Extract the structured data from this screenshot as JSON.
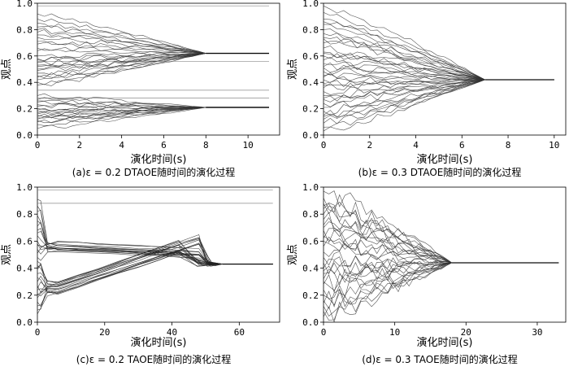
{
  "chart_data": [
    {
      "type": "line",
      "panel": "a",
      "caption": "(a)ε = 0.2  DTAOE随时间的演化过程",
      "xlabel": "演化时间(s)",
      "ylabel": "观点",
      "xlim": [
        0,
        11.5
      ],
      "ylim": [
        0,
        1.0
      ],
      "xticks": [
        0,
        2,
        4,
        6,
        8,
        10
      ],
      "yticks": [
        0.0,
        0.2,
        0.4,
        0.6,
        0.8,
        1.0
      ],
      "consensus_clusters": [
        0.62,
        0.21
      ],
      "isolated_opinions": [
        0.98,
        0.56,
        0.34,
        0.28
      ],
      "t_converge": 8,
      "t_end": 11,
      "series": [
        {
          "values": [
            0.92,
            0.85,
            0.8,
            0.76,
            0.71,
            0.66,
            0.58,
            0.55,
            0.52,
            0.5,
            0.47,
            0.45,
            0.42,
            0.38,
            0.74,
            0.69,
            0.64,
            0.6,
            0.57,
            0.53,
            0.49,
            0.44,
            0.4,
            0.88,
            0.82,
            0.78
          ]
        },
        {
          "values": [
            0.3,
            0.27,
            0.25,
            0.22,
            0.2,
            0.18,
            0.16,
            0.15,
            0.13,
            0.12,
            0.1,
            0.08,
            0.05,
            0.26,
            0.23,
            0.19,
            0.14,
            0.17,
            0.11
          ]
        }
      ]
    },
    {
      "type": "line",
      "panel": "b",
      "caption": "(b)ε = 0.3  DTAOE随时间的演化过程",
      "xlabel": "演化时间(s)",
      "ylabel": "观点",
      "xlim": [
        0,
        10.5
      ],
      "ylim": [
        0,
        1.0
      ],
      "xticks": [
        0,
        2,
        4,
        6,
        8,
        10
      ],
      "yticks": [
        0.0,
        0.2,
        0.4,
        0.6,
        0.8,
        1.0
      ],
      "consensus_clusters": [
        0.42
      ],
      "t_converge": 7,
      "t_end": 10,
      "initial_opinions": [
        0.98,
        0.93,
        0.88,
        0.84,
        0.8,
        0.77,
        0.73,
        0.7,
        0.66,
        0.63,
        0.6,
        0.57,
        0.54,
        0.51,
        0.48,
        0.45,
        0.42,
        0.39,
        0.36,
        0.33,
        0.3,
        0.27,
        0.24,
        0.21,
        0.18,
        0.15,
        0.12,
        0.09,
        0.06,
        0.03,
        0.86,
        0.62,
        0.38,
        0.14,
        0.52,
        0.28,
        0.74,
        0.44
      ]
    },
    {
      "type": "line",
      "panel": "c",
      "caption": "(c)ε = 0.2  TAOE随时间的演化过程",
      "xlabel": "演化时间(s)",
      "ylabel": "观点",
      "xlim": [
        0,
        72
      ],
      "ylim": [
        0,
        1.0
      ],
      "xticks": [
        0,
        20,
        40,
        60
      ],
      "yticks": [
        0.0,
        0.2,
        0.4,
        0.6,
        0.8,
        1.0
      ],
      "consensus_clusters": [
        0.43
      ],
      "isolated_opinions": [
        0.98,
        0.88
      ],
      "t_converge": 55,
      "t_end": 70,
      "initial_opinions": [
        0.91,
        0.86,
        0.82,
        0.79,
        0.75,
        0.71,
        0.68,
        0.64,
        0.6,
        0.57,
        0.54,
        0.51,
        0.48,
        0.45,
        0.42,
        0.39,
        0.36,
        0.33,
        0.3,
        0.27,
        0.24,
        0.21,
        0.18,
        0.15,
        0.12,
        0.09,
        0.06,
        0.58,
        0.25,
        0.4,
        0.66,
        0.2
      ]
    },
    {
      "type": "line",
      "panel": "d",
      "caption": "(d)ε = 0.3  TAOE随时间的演化过程",
      "xlabel": "演化时间(s)",
      "ylabel": "观点",
      "xlim": [
        0,
        34
      ],
      "ylim": [
        0,
        1.0
      ],
      "xticks": [
        0,
        10,
        20,
        30
      ],
      "yticks": [
        0.0,
        0.2,
        0.4,
        0.6,
        0.8,
        1.0
      ],
      "consensus_clusters": [
        0.44
      ],
      "t_converge": 18,
      "t_end": 33,
      "initial_opinions": [
        0.97,
        0.92,
        0.88,
        0.84,
        0.8,
        0.76,
        0.72,
        0.68,
        0.64,
        0.6,
        0.56,
        0.52,
        0.48,
        0.44,
        0.4,
        0.36,
        0.32,
        0.28,
        0.24,
        0.2,
        0.16,
        0.12,
        0.08,
        0.04,
        0.86,
        0.62,
        0.38,
        0.14,
        0.7,
        0.3
      ]
    }
  ]
}
